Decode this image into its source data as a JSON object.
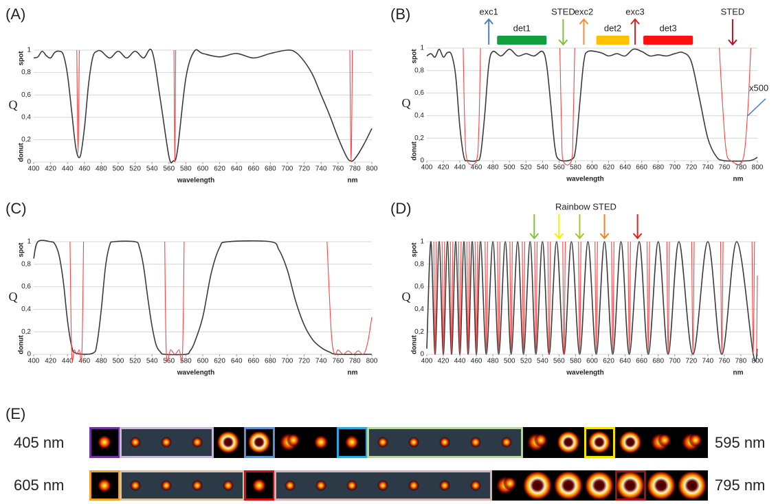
{
  "chart_data": [
    {
      "type": "line",
      "panel_label": "(A)",
      "y_label": "Q",
      "y_top_label": "spot",
      "y_bottom_label": "donut",
      "x_label": "wavelength",
      "x_unit": "nm",
      "xlim": [
        400,
        800
      ],
      "ylim": [
        0,
        1
      ],
      "grid": true,
      "xticks": [
        400,
        420,
        440,
        460,
        480,
        500,
        520,
        540,
        560,
        580,
        600,
        620,
        640,
        660,
        680,
        700,
        720,
        740,
        760,
        780,
        800
      ],
      "yticks": [
        0,
        {
          "value": 0.2,
          "label": "0,2"
        },
        {
          "value": 0.4,
          "label": "0,4"
        },
        {
          "value": 0.6,
          "label": "0,6"
        },
        {
          "value": 0.8,
          "label": "0,8"
        },
        1
      ],
      "series": [
        {
          "color": "#3a3a3a",
          "x": [
            400,
            405,
            410,
            415,
            420,
            425,
            430,
            435,
            440,
            445,
            450,
            455,
            460,
            465,
            470,
            475,
            480,
            490,
            500,
            510,
            520,
            530,
            540,
            550,
            560,
            565,
            570,
            580,
            590,
            600,
            620,
            640,
            660,
            680,
            700,
            710,
            720,
            730,
            740,
            750,
            760,
            770,
            775,
            780,
            790,
            800
          ],
          "values": [
            0.93,
            0.94,
            0.99,
            0.95,
            0.93,
            0.98,
            0.99,
            0.96,
            0.78,
            0.45,
            0.12,
            0.05,
            0.3,
            0.7,
            0.94,
            0.99,
            0.99,
            0.93,
            0.99,
            0.93,
            0.99,
            0.93,
            0.99,
            0.55,
            0.05,
            0.01,
            0.1,
            0.75,
            0.99,
            0.97,
            0.94,
            0.97,
            0.93,
            0.97,
            1,
            0.98,
            0.9,
            0.78,
            0.6,
            0.42,
            0.22,
            0.05,
            0.01,
            0.03,
            0.15,
            0.3
          ]
        },
        {
          "color": "#ff4040",
          "x": [
            451,
            452.5,
            454,
            null,
            566,
            567,
            568,
            null,
            774,
            775.5,
            777
          ],
          "values": [
            1,
            0.08,
            1,
            null,
            1,
            0,
            1,
            null,
            1,
            0,
            1
          ]
        }
      ]
    },
    {
      "type": "line",
      "panel_label": "(B)",
      "y_label": "Q",
      "y_top_label": "spot",
      "y_bottom_label": "donut",
      "x_label": "wavelength",
      "x_unit": "nm",
      "xlim": [
        400,
        800
      ],
      "ylim": [
        0,
        1
      ],
      "grid": true,
      "xticks": [
        400,
        420,
        440,
        460,
        480,
        500,
        520,
        540,
        560,
        580,
        600,
        620,
        640,
        660,
        680,
        700,
        720,
        740,
        760,
        780,
        800
      ],
      "yticks": [
        0,
        {
          "value": 0.2,
          "label": "0,2"
        },
        {
          "value": 0.4,
          "label": "0,4"
        },
        {
          "value": 0.6,
          "label": "0,6"
        },
        {
          "value": 0.8,
          "label": "0,8"
        },
        1
      ],
      "series": [
        {
          "color": "#3a3a3a",
          "x": [
            400,
            405,
            410,
            415,
            420,
            425,
            430,
            435,
            440,
            445,
            450,
            460,
            465,
            470,
            475,
            480,
            490,
            500,
            510,
            520,
            530,
            540,
            545,
            550,
            555,
            560,
            575,
            580,
            585,
            590,
            595,
            610,
            620,
            630,
            640,
            650,
            660,
            670,
            680,
            690,
            700,
            710,
            720,
            730,
            740,
            750,
            760,
            790,
            800
          ],
          "values": [
            0.93,
            0.95,
            0.92,
            0.99,
            0.92,
            0.96,
            0.94,
            0.75,
            0.3,
            0.03,
            0,
            0,
            0.05,
            0.4,
            0.85,
            0.97,
            0.93,
            0.99,
            0.93,
            0.95,
            0.93,
            0.97,
            0.85,
            0.5,
            0.12,
            0.01,
            0.01,
            0.1,
            0.5,
            0.88,
            0.97,
            0.96,
            0.93,
            0.95,
            0.93,
            0.99,
            0.97,
            0.93,
            0.94,
            0.93,
            0.95,
            0.96,
            0.88,
            0.55,
            0.2,
            0.04,
            0,
            0,
            0.03
          ]
        },
        {
          "color": "#ff4040",
          "x": [
            444,
            446,
            449,
            460,
            463,
            465,
            null,
            561,
            563,
            565,
            575,
            577,
            579,
            null,
            754,
            757,
            762,
            768,
            782,
            788,
            792
          ],
          "values": [
            1,
            0.3,
            0,
            0,
            0.3,
            1,
            null,
            1,
            0.3,
            0,
            0,
            0.3,
            1,
            null,
            1,
            0.6,
            0.1,
            0,
            0,
            0.4,
            1
          ]
        }
      ],
      "annotations": [
        {
          "label": "exc1",
          "x": 475,
          "color": "#4a7ec0",
          "direction": "up"
        },
        {
          "label": "det1",
          "x": [
            485,
            545
          ],
          "color": "#10a040",
          "direction": "bar"
        },
        {
          "label": "STED",
          "x": 565,
          "color": "#80c040",
          "direction": "down"
        },
        {
          "label": "exc2",
          "x": 590,
          "color": "#f09040",
          "direction": "up"
        },
        {
          "label": "det2",
          "x": [
            605,
            645
          ],
          "color": "#ffc000",
          "direction": "bar"
        },
        {
          "label": "exc3",
          "x": 652,
          "color": "#e02020",
          "direction": "up"
        },
        {
          "label": "det3",
          "x": [
            662,
            722
          ],
          "color": "#ff1010",
          "direction": "bar"
        },
        {
          "label": "STED",
          "x": 770,
          "color": "#c01020",
          "direction": "down"
        },
        {
          "label": "x500",
          "x": 790,
          "color": "#4a7ec0",
          "direction": "pointer"
        }
      ]
    },
    {
      "type": "line",
      "panel_label": "(C)",
      "y_label": "Q",
      "y_top_label": "spot",
      "y_bottom_label": "donut",
      "x_label": "wavelength",
      "x_unit": "nm",
      "xlim": [
        400,
        800
      ],
      "ylim": [
        0,
        1
      ],
      "grid": true,
      "xticks": [
        400,
        420,
        440,
        460,
        480,
        500,
        520,
        540,
        560,
        580,
        600,
        620,
        640,
        660,
        680,
        700,
        720,
        740,
        760,
        780,
        800
      ],
      "yticks": [
        0,
        {
          "value": 0.2,
          "label": "0,2"
        },
        {
          "value": 0.4,
          "label": "0,4"
        },
        {
          "value": 0.6,
          "label": "0,6"
        },
        {
          "value": 0.8,
          "label": "0,8"
        },
        1
      ],
      "series": [
        {
          "color": "#3a3a3a",
          "x": [
            400,
            405,
            420,
            425,
            430,
            435,
            440,
            445,
            450,
            470,
            475,
            480,
            485,
            490,
            495,
            520,
            525,
            530,
            535,
            540,
            545,
            550,
            555,
            580,
            585,
            590,
            600,
            610,
            620,
            630,
            680,
            690,
            700,
            710,
            720,
            730,
            740,
            750,
            760,
            800
          ],
          "values": [
            0.85,
            1,
            1,
            0.98,
            0.88,
            0.65,
            0.3,
            0.07,
            0.01,
            0.01,
            0.1,
            0.4,
            0.78,
            0.97,
            1,
            1,
            0.95,
            0.78,
            0.5,
            0.25,
            0.08,
            0.02,
            0,
            0,
            0.03,
            0.1,
            0.33,
            0.72,
            0.95,
            1,
            1,
            0.93,
            0.75,
            0.47,
            0.26,
            0.13,
            0.06,
            0.02,
            0,
            0
          ]
        },
        {
          "color": "#ff4040",
          "x": [
            443,
            445,
            448,
            451,
            454,
            457,
            459,
            null,
            555,
            557,
            562,
            567,
            572,
            576,
            578,
            null,
            747,
            752,
            756,
            760,
            766,
            772,
            778,
            784,
            790,
            795,
            800
          ],
          "values": [
            1,
            0,
            0.04,
            0,
            0.04,
            0,
            1,
            null,
            1,
            0,
            0.04,
            0,
            0.04,
            0,
            1,
            null,
            1,
            0.2,
            0,
            0.04,
            0,
            0.03,
            0,
            0.03,
            0,
            0.1,
            0.33
          ]
        }
      ]
    },
    {
      "type": "line",
      "panel_label": "(D)",
      "y_label": "Q",
      "y_top_label": "spot",
      "y_bottom_label": "donut",
      "x_label": "wavelength",
      "x_unit": "nm",
      "xlim": [
        400,
        800
      ],
      "ylim": [
        0,
        1
      ],
      "grid": true,
      "xticks": [
        400,
        420,
        440,
        460,
        480,
        500,
        520,
        540,
        560,
        580,
        600,
        620,
        640,
        660,
        680,
        700,
        720,
        740,
        760,
        780,
        800
      ],
      "yticks": [
        0,
        {
          "value": 0.2,
          "label": "0,2"
        },
        {
          "value": 0.4,
          "label": "0,4"
        },
        {
          "value": 0.6,
          "label": "0,6"
        },
        {
          "value": 0.8,
          "label": "0,8"
        },
        1
      ],
      "series": [
        {
          "color": "#3a3a3a",
          "x": [
            400,
            405,
            410,
            415,
            420,
            425,
            430,
            435,
            440,
            445,
            450,
            455,
            460,
            465,
            472,
            480,
            487,
            495,
            502,
            510,
            517,
            525,
            532,
            540,
            548,
            557,
            566,
            575,
            585,
            595,
            605,
            615,
            625,
            635,
            645,
            657,
            668,
            680,
            692,
            705,
            722,
            740,
            757,
            775,
            795,
            800
          ],
          "values": [
            0.05,
            1,
            0,
            1,
            0,
            1,
            0,
            1,
            0,
            1,
            0,
            1,
            0,
            1,
            0,
            1,
            0,
            1,
            0,
            1,
            0,
            1,
            0,
            1,
            0,
            1,
            0,
            1,
            0,
            1,
            0,
            1,
            0,
            1,
            0,
            1,
            0,
            1,
            0,
            1,
            0,
            1,
            0,
            1,
            0,
            0.05
          ]
        },
        {
          "color": "#ff4040",
          "x": [
            408.5,
            410,
            411.5,
            null,
            418.5,
            420,
            421.5,
            null,
            428.5,
            430,
            431.5,
            null,
            438.5,
            440,
            441.5,
            null,
            448.5,
            450,
            451.5,
            null,
            458.5,
            460,
            461.5,
            null,
            470.5,
            472,
            473.5,
            null,
            485.5,
            487,
            488.5,
            null,
            500.5,
            502,
            503.5,
            null,
            515.5,
            517,
            518.5,
            null,
            530.5,
            532,
            533.5,
            null,
            546.5,
            548,
            549.5,
            null,
            564.5,
            566,
            567.5,
            null,
            583.5,
            585,
            586.5,
            null,
            603.5,
            605,
            606.5,
            null,
            623.5,
            625,
            626.5,
            null,
            643.5,
            645,
            646.5,
            null,
            666.5,
            668,
            669.5,
            null,
            690.5,
            692,
            693.5,
            null,
            720.5,
            722,
            723.5,
            null,
            755.5,
            757,
            758.5,
            null,
            793.5,
            795,
            796.5,
            null,
            799,
            800
          ],
          "values": [
            1,
            0,
            1,
            null,
            1,
            0,
            1,
            null,
            1,
            0,
            1,
            null,
            1,
            0,
            1,
            null,
            1,
            0,
            1,
            null,
            1,
            0,
            1,
            null,
            1,
            0,
            1,
            null,
            1,
            0,
            1,
            null,
            1,
            0,
            1,
            null,
            1,
            0,
            1,
            null,
            1,
            0,
            1,
            null,
            1,
            0,
            1,
            null,
            1,
            0,
            1,
            null,
            1,
            0,
            1,
            null,
            1,
            0,
            1,
            null,
            1,
            0,
            1,
            null,
            1,
            0,
            1,
            null,
            1,
            0,
            1,
            null,
            1,
            0,
            1,
            null,
            1,
            0,
            1,
            null,
            1,
            0,
            1,
            null,
            1,
            0,
            1,
            null,
            0,
            0.7
          ]
        }
      ],
      "annotation_title": "Rainbow STED",
      "annotations": [
        {
          "x": 530,
          "color": "#80c040",
          "direction": "down"
        },
        {
          "x": 560,
          "color": "#f0f000",
          "direction": "down"
        },
        {
          "x": 585,
          "color": "#b0c030",
          "direction": "down"
        },
        {
          "x": 615,
          "color": "#f08030",
          "direction": "down"
        },
        {
          "x": 655,
          "color": "#e02020",
          "direction": "down"
        }
      ]
    }
  ],
  "panel_e": {
    "label": "(E)",
    "rows": [
      {
        "start": "405 nm",
        "end": "595 nm"
      },
      {
        "start": "605 nm",
        "end": "795 nm"
      }
    ]
  }
}
